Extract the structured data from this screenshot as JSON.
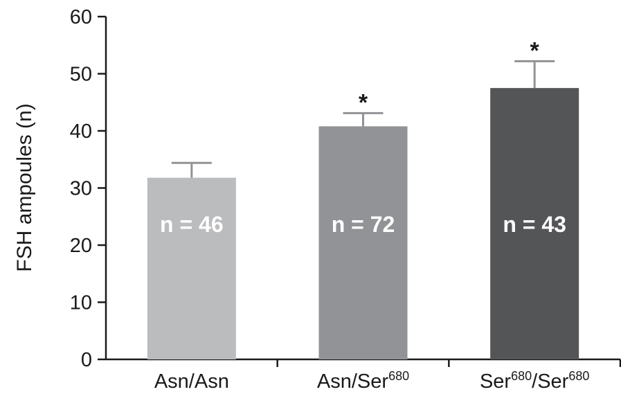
{
  "chart_data": {
    "type": "bar",
    "categories": [
      {
        "base": "Asn/Asn",
        "sup": "",
        "tail": ""
      },
      {
        "base": "Asn/Ser",
        "sup": "680",
        "tail": ""
      },
      {
        "base": "Ser",
        "sup": "680",
        "tail": "/Ser",
        "sup2": "680"
      }
    ],
    "values": [
      31.8,
      40.8,
      47.5
    ],
    "errors": [
      2.6,
      2.3,
      4.7
    ],
    "n_labels": [
      "n = 46",
      "n = 72",
      "n = 43"
    ],
    "significance": [
      "",
      "*",
      "*"
    ],
    "bar_colors": [
      "#bbbcbe",
      "#929396",
      "#545557"
    ],
    "error_bar_color": "#929396",
    "ylabel": "FSH ampoules (n)",
    "ylim": [
      0,
      60
    ],
    "yticks": [
      0,
      10,
      20,
      30,
      40,
      50,
      60
    ],
    "grid": false
  }
}
